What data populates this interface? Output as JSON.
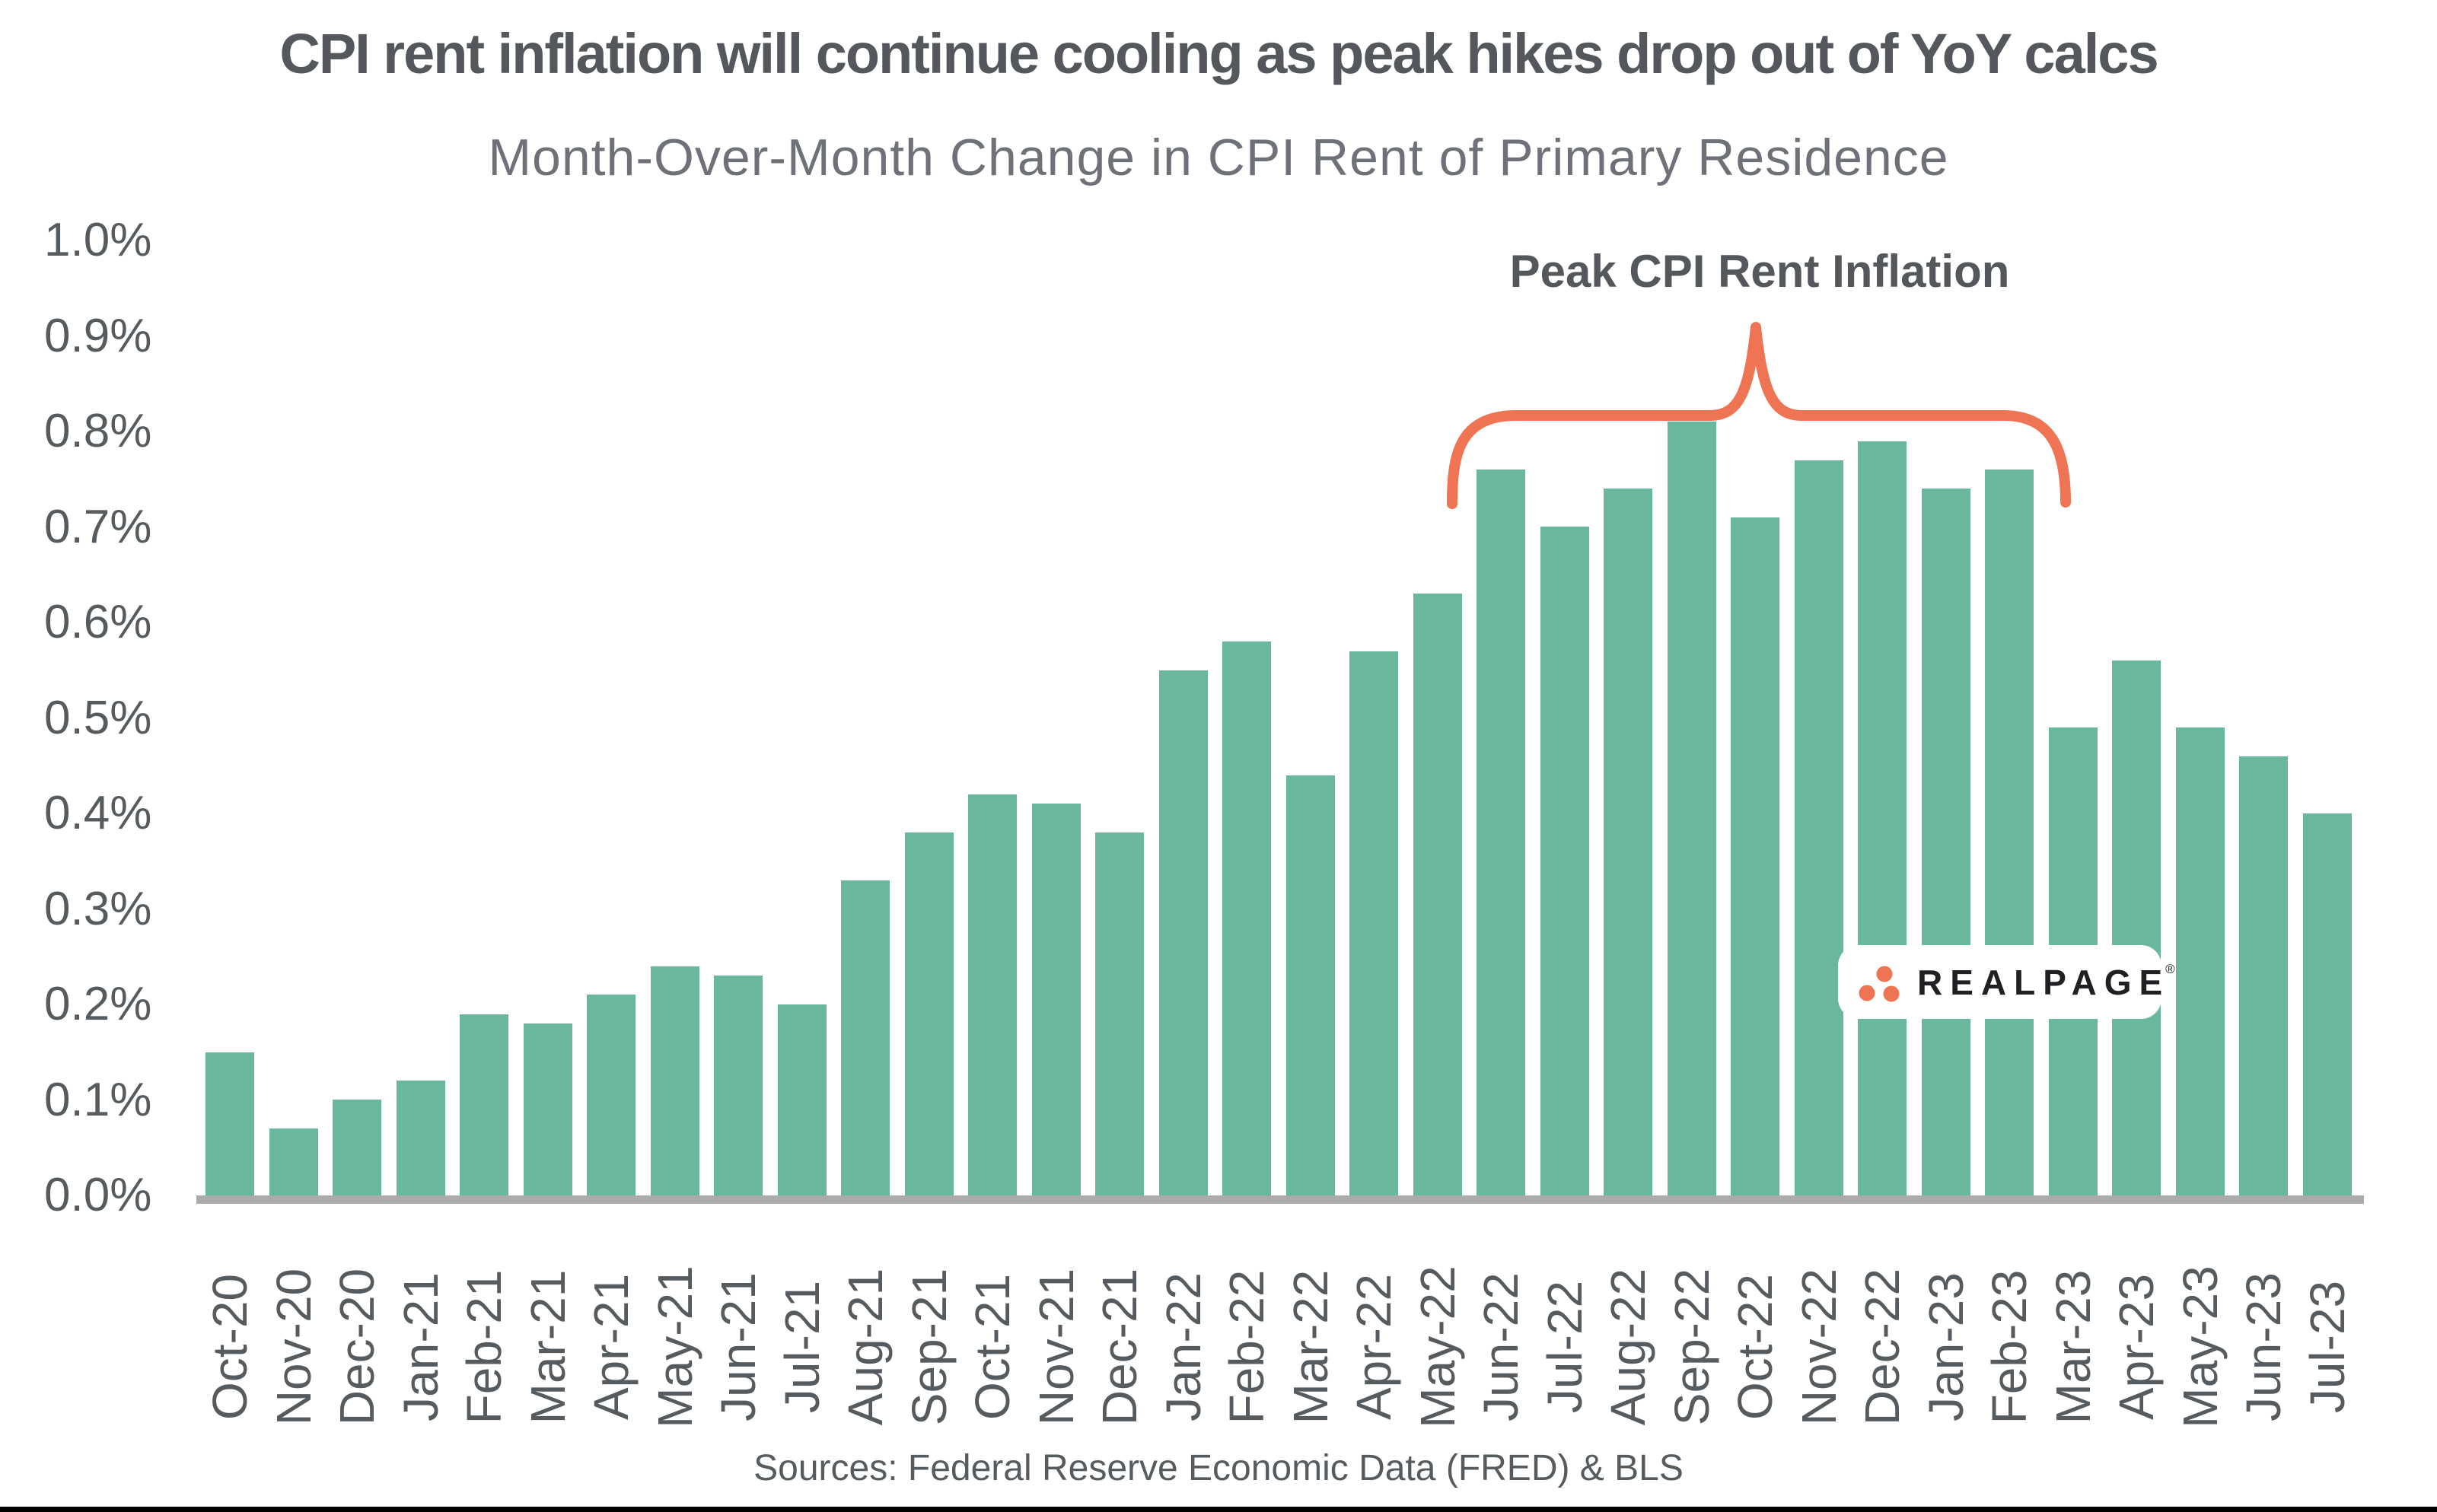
{
  "title": "CPI rent inflation will continue cooling as peak hikes drop out of YoY calcs",
  "subtitle": "Month-Over-Month Change in CPI Rent of Primary Residence",
  "annotation": {
    "label": "Peak CPI Rent Inflation",
    "start_month": "Jun-22",
    "end_month": "Feb-23"
  },
  "source": "Sources: Federal Reserve Economic Data (FRED) & BLS",
  "logo": {
    "text": "REALPAGE",
    "registered_mark": "®",
    "icon": "three-dots-triangle-icon"
  },
  "colors": {
    "bar_green": "#6AB7A0",
    "accent_orange": "#EE7453",
    "title_gray": "#54575B",
    "subtitle_gray": "#6E7278",
    "axis_text_gray": "#565B5F",
    "axis_line_gray": "#ABABAB",
    "logo_text_black": "#1F2023"
  },
  "chart_data": {
    "type": "bar",
    "title": "CPI rent inflation will continue cooling as peak hikes drop out of YoY calcs",
    "subtitle": "Month-Over-Month Change in CPI Rent of Primary Residence",
    "xlabel": "",
    "ylabel": "",
    "ylim": [
      0.0,
      1.0
    ],
    "grid": false,
    "legend_position": "none",
    "bar_color": "#6AB7A0",
    "y_ticks": [
      "0.0%",
      "0.1%",
      "0.2%",
      "0.3%",
      "0.4%",
      "0.5%",
      "0.6%",
      "0.7%",
      "0.8%",
      "0.9%",
      "1.0%"
    ],
    "categories": [
      "Oct-20",
      "Nov-20",
      "Dec-20",
      "Jan-21",
      "Feb-21",
      "Mar-21",
      "Apr-21",
      "May-21",
      "Jun-21",
      "Jul-21",
      "Aug-21",
      "Sep-21",
      "Oct-21",
      "Nov-21",
      "Dec-21",
      "Jan-22",
      "Feb-22",
      "Mar-22",
      "Apr-22",
      "May-22",
      "Jun-22",
      "Jul-22",
      "Aug-22",
      "Sep-22",
      "Oct-22",
      "Nov-22",
      "Dec-22",
      "Jan-23",
      "Feb-23",
      "Mar-23",
      "Apr-23",
      "May-23",
      "Jun-23",
      "Jul-23"
    ],
    "values": [
      0.15,
      0.07,
      0.1,
      0.12,
      0.19,
      0.18,
      0.21,
      0.24,
      0.23,
      0.2,
      0.33,
      0.38,
      0.42,
      0.41,
      0.38,
      0.55,
      0.58,
      0.44,
      0.57,
      0.63,
      0.76,
      0.7,
      0.74,
      0.81,
      0.71,
      0.77,
      0.79,
      0.74,
      0.76,
      0.49,
      0.56,
      0.49,
      0.46,
      0.4
    ],
    "annotated_range": {
      "label": "Peak CPI Rent Inflation",
      "from": "Jun-22",
      "to": "Feb-23"
    }
  }
}
